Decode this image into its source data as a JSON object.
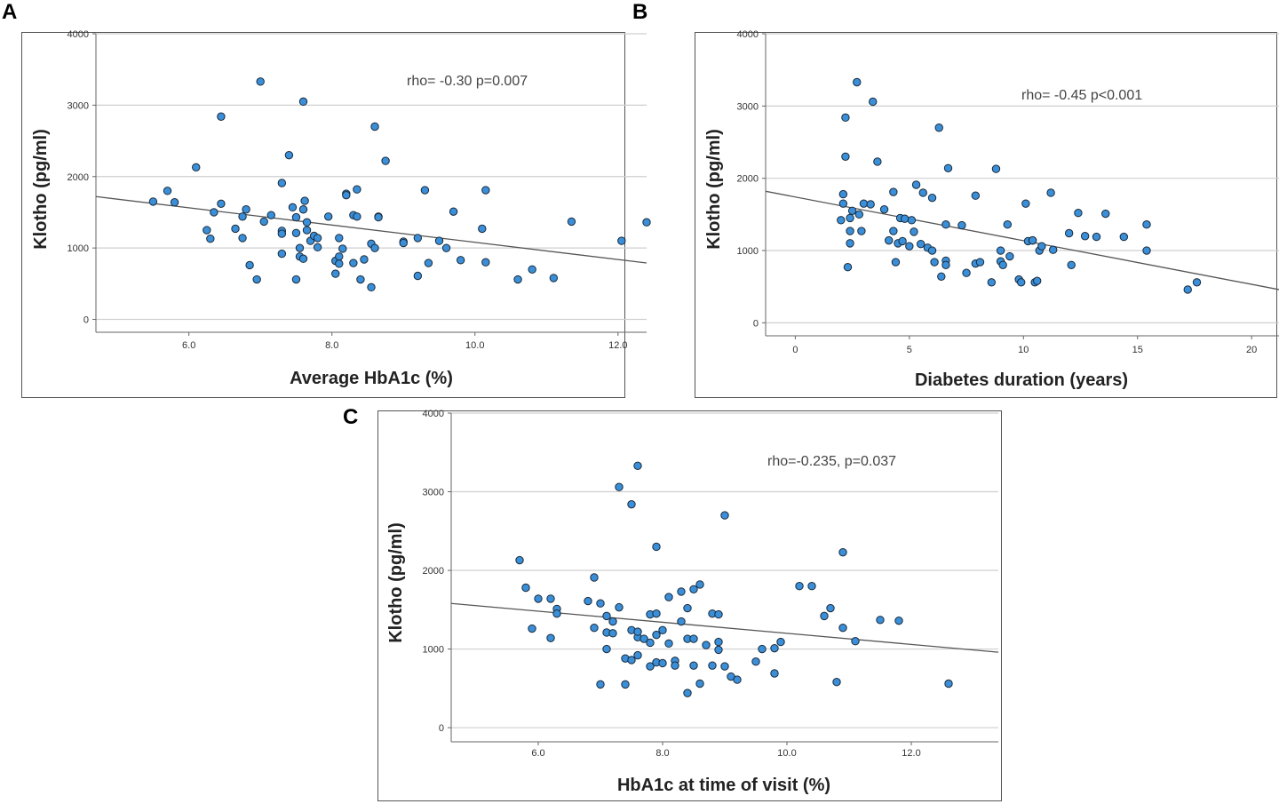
{
  "colors": {
    "point_fill": "#3a8fd8",
    "point_stroke": "#1a2a3a",
    "grid": "#cfcfcf",
    "fit_line": "#555555",
    "frame": "#555555"
  },
  "chart_data": [
    {
      "panel": "A",
      "type": "scatter",
      "xlabel": "Average HbA1c (%)",
      "ylabel": "Klotho (pg/ml)",
      "annotation": "rho= -0.30  p=0.007",
      "xlim": [
        4.7,
        12.4
      ],
      "ylim": [
        -180,
        4000
      ],
      "xticks": [
        6.0,
        8.0,
        10.0,
        12.0
      ],
      "xtick_labels": [
        "6.0",
        "8.0",
        "10.0",
        "12.0"
      ],
      "yticks": [
        0,
        1000,
        2000,
        3000,
        4000
      ],
      "ytick_labels": [
        "0",
        "1000",
        "2000",
        "3000",
        "4000"
      ],
      "fit_line": [
        [
          4.7,
          1720
        ],
        [
          12.4,
          790
        ]
      ],
      "points": [
        [
          5.5,
          1650
        ],
        [
          5.7,
          1800
        ],
        [
          5.8,
          1640
        ],
        [
          6.1,
          2130
        ],
        [
          6.25,
          1250
        ],
        [
          6.3,
          1130
        ],
        [
          6.35,
          1500
        ],
        [
          6.45,
          2840
        ],
        [
          6.45,
          1620
        ],
        [
          6.65,
          1270
        ],
        [
          6.75,
          1440
        ],
        [
          6.75,
          1140
        ],
        [
          6.8,
          1540
        ],
        [
          6.85,
          760
        ],
        [
          6.95,
          560
        ],
        [
          7.0,
          3330
        ],
        [
          7.05,
          1370
        ],
        [
          7.15,
          1460
        ],
        [
          7.3,
          1910
        ],
        [
          7.3,
          1240
        ],
        [
          7.3,
          1200
        ],
        [
          7.3,
          920
        ],
        [
          7.4,
          2300
        ],
        [
          7.45,
          1570
        ],
        [
          7.5,
          1430
        ],
        [
          7.5,
          1210
        ],
        [
          7.5,
          560
        ],
        [
          7.55,
          880
        ],
        [
          7.55,
          1000
        ],
        [
          7.6,
          3050
        ],
        [
          7.6,
          1540
        ],
        [
          7.6,
          850
        ],
        [
          7.62,
          1660
        ],
        [
          7.65,
          1360
        ],
        [
          7.65,
          1250
        ],
        [
          7.7,
          1100
        ],
        [
          7.75,
          1170
        ],
        [
          7.8,
          1140
        ],
        [
          7.8,
          1010
        ],
        [
          7.95,
          1440
        ],
        [
          8.05,
          640
        ],
        [
          8.05,
          820
        ],
        [
          8.1,
          880
        ],
        [
          8.1,
          780
        ],
        [
          8.1,
          1140
        ],
        [
          8.15,
          990
        ],
        [
          8.2,
          1760
        ],
        [
          8.2,
          1740
        ],
        [
          8.3,
          1460
        ],
        [
          8.3,
          790
        ],
        [
          8.35,
          1820
        ],
        [
          8.35,
          1440
        ],
        [
          8.4,
          560
        ],
        [
          8.45,
          840
        ],
        [
          8.55,
          450
        ],
        [
          8.55,
          1060
        ],
        [
          8.6,
          1000
        ],
        [
          8.6,
          2700
        ],
        [
          8.65,
          1440
        ],
        [
          8.65,
          1430
        ],
        [
          8.75,
          2220
        ],
        [
          9.0,
          1090
        ],
        [
          9.0,
          1070
        ],
        [
          9.2,
          610
        ],
        [
          9.2,
          1140
        ],
        [
          9.3,
          1810
        ],
        [
          9.35,
          790
        ],
        [
          9.5,
          1100
        ],
        [
          9.6,
          1000
        ],
        [
          9.7,
          1510
        ],
        [
          9.8,
          830
        ],
        [
          10.1,
          1270
        ],
        [
          10.15,
          1810
        ],
        [
          10.15,
          800
        ],
        [
          10.6,
          560
        ],
        [
          10.8,
          700
        ],
        [
          11.1,
          580
        ],
        [
          11.35,
          1370
        ],
        [
          12.05,
          1100
        ],
        [
          12.4,
          1360
        ]
      ]
    },
    {
      "panel": "B",
      "type": "scatter",
      "xlabel": "Diabetes duration (years)",
      "ylabel": "Klotho (pg/ml)",
      "annotation": "rho= -0.45  p<0.001",
      "xlim": [
        -1.3,
        21.2
      ],
      "ylim": [
        -180,
        4000
      ],
      "xticks": [
        0,
        5,
        10,
        15,
        20
      ],
      "xtick_labels": [
        "0",
        "5",
        "10",
        "15",
        "20"
      ],
      "yticks": [
        0,
        1000,
        2000,
        3000,
        4000
      ],
      "ytick_labels": [
        "0",
        "1000",
        "2000",
        "3000",
        "4000"
      ],
      "fit_line": [
        [
          -1.3,
          1820
        ],
        [
          21.2,
          460
        ]
      ],
      "points": [
        [
          2.0,
          1420
        ],
        [
          2.1,
          1650
        ],
        [
          2.1,
          1780
        ],
        [
          2.2,
          2300
        ],
        [
          2.2,
          2840
        ],
        [
          2.3,
          770
        ],
        [
          2.4,
          1450
        ],
        [
          2.4,
          1270
        ],
        [
          2.4,
          1100
        ],
        [
          2.5,
          1550
        ],
        [
          2.7,
          3330
        ],
        [
          2.8,
          1500
        ],
        [
          2.9,
          1270
        ],
        [
          3.0,
          1650
        ],
        [
          3.3,
          1640
        ],
        [
          3.4,
          3060
        ],
        [
          3.6,
          2230
        ],
        [
          3.9,
          1570
        ],
        [
          4.1,
          1140
        ],
        [
          4.3,
          1810
        ],
        [
          4.3,
          1270
        ],
        [
          4.4,
          840
        ],
        [
          4.5,
          1100
        ],
        [
          4.6,
          1450
        ],
        [
          4.7,
          1130
        ],
        [
          4.8,
          1440
        ],
        [
          5.0,
          1060
        ],
        [
          5.1,
          1420
        ],
        [
          5.2,
          1260
        ],
        [
          5.3,
          1910
        ],
        [
          5.5,
          1090
        ],
        [
          5.6,
          1800
        ],
        [
          5.8,
          1040
        ],
        [
          6.0,
          1000
        ],
        [
          6.0,
          1730
        ],
        [
          6.1,
          840
        ],
        [
          6.3,
          2700
        ],
        [
          6.4,
          640
        ],
        [
          6.6,
          1360
        ],
        [
          6.6,
          860
        ],
        [
          6.6,
          800
        ],
        [
          6.7,
          2140
        ],
        [
          7.3,
          1350
        ],
        [
          7.5,
          690
        ],
        [
          7.9,
          1760
        ],
        [
          7.9,
          820
        ],
        [
          8.1,
          840
        ],
        [
          8.6,
          560
        ],
        [
          8.8,
          2130
        ],
        [
          9.0,
          1000
        ],
        [
          9.0,
          850
        ],
        [
          9.1,
          800
        ],
        [
          9.3,
          1360
        ],
        [
          9.4,
          920
        ],
        [
          9.8,
          600
        ],
        [
          9.9,
          560
        ],
        [
          10.1,
          1650
        ],
        [
          10.2,
          1130
        ],
        [
          10.4,
          1140
        ],
        [
          10.4,
          1140
        ],
        [
          10.5,
          560
        ],
        [
          10.6,
          580
        ],
        [
          10.7,
          1000
        ],
        [
          10.8,
          1060
        ],
        [
          11.2,
          1800
        ],
        [
          11.3,
          1010
        ],
        [
          12.0,
          1240
        ],
        [
          12.1,
          800
        ],
        [
          12.4,
          1520
        ],
        [
          12.7,
          1200
        ],
        [
          13.2,
          1190
        ],
        [
          13.6,
          1510
        ],
        [
          14.4,
          1190
        ],
        [
          15.4,
          1360
        ],
        [
          15.4,
          1000
        ],
        [
          17.2,
          460
        ],
        [
          17.6,
          560
        ]
      ]
    },
    {
      "panel": "C",
      "type": "scatter",
      "xlabel": "HbA1c at time of visit (%)",
      "ylabel": "Klotho (pg/ml)",
      "annotation": "rho=-0.235, p=0.037",
      "xlim": [
        4.6,
        13.4
      ],
      "ylim": [
        -180,
        4000
      ],
      "xticks": [
        6.0,
        8.0,
        10.0,
        12.0
      ],
      "xtick_labels": [
        "6.0",
        "8.0",
        "10.0",
        "12.0"
      ],
      "yticks": [
        0,
        1000,
        2000,
        3000,
        4000
      ],
      "ytick_labels": [
        "0",
        "1000",
        "2000",
        "3000",
        "4000"
      ],
      "fit_line": [
        [
          4.6,
          1580
        ],
        [
          13.4,
          960
        ]
      ],
      "points": [
        [
          5.7,
          2130
        ],
        [
          5.8,
          1780
        ],
        [
          5.9,
          1260
        ],
        [
          6.0,
          1640
        ],
        [
          6.2,
          1640
        ],
        [
          6.2,
          1140
        ],
        [
          6.3,
          1510
        ],
        [
          6.3,
          1450
        ],
        [
          6.8,
          1610
        ],
        [
          6.9,
          1910
        ],
        [
          6.9,
          1270
        ],
        [
          7.0,
          1580
        ],
        [
          7.0,
          550
        ],
        [
          7.1,
          1420
        ],
        [
          7.1,
          1000
        ],
        [
          7.1,
          1210
        ],
        [
          7.2,
          1350
        ],
        [
          7.2,
          1200
        ],
        [
          7.3,
          3060
        ],
        [
          7.3,
          1530
        ],
        [
          7.4,
          880
        ],
        [
          7.4,
          550
        ],
        [
          7.5,
          2840
        ],
        [
          7.5,
          1240
        ],
        [
          7.5,
          860
        ],
        [
          7.6,
          3330
        ],
        [
          7.6,
          1150
        ],
        [
          7.6,
          1220
        ],
        [
          7.6,
          920
        ],
        [
          7.7,
          1130
        ],
        [
          7.8,
          1440
        ],
        [
          7.8,
          1080
        ],
        [
          7.8,
          780
        ],
        [
          7.9,
          2300
        ],
        [
          7.9,
          1450
        ],
        [
          7.9,
          1180
        ],
        [
          7.9,
          830
        ],
        [
          8.0,
          1240
        ],
        [
          8.0,
          820
        ],
        [
          8.1,
          1660
        ],
        [
          8.1,
          1070
        ],
        [
          8.2,
          850
        ],
        [
          8.2,
          790
        ],
        [
          8.3,
          1730
        ],
        [
          8.3,
          1350
        ],
        [
          8.4,
          1520
        ],
        [
          8.4,
          1130
        ],
        [
          8.4,
          440
        ],
        [
          8.5,
          1760
        ],
        [
          8.5,
          1130
        ],
        [
          8.5,
          790
        ],
        [
          8.6,
          1820
        ],
        [
          8.6,
          560
        ],
        [
          8.7,
          1050
        ],
        [
          8.8,
          1450
        ],
        [
          8.8,
          790
        ],
        [
          8.9,
          1440
        ],
        [
          8.9,
          1090
        ],
        [
          8.9,
          990
        ],
        [
          9.0,
          2700
        ],
        [
          9.0,
          780
        ],
        [
          9.1,
          650
        ],
        [
          9.2,
          610
        ],
        [
          9.5,
          840
        ],
        [
          9.6,
          1000
        ],
        [
          9.8,
          1010
        ],
        [
          9.8,
          690
        ],
        [
          9.9,
          1090
        ],
        [
          10.2,
          1800
        ],
        [
          10.4,
          1800
        ],
        [
          10.6,
          1420
        ],
        [
          10.7,
          1520
        ],
        [
          10.8,
          580
        ],
        [
          10.9,
          2230
        ],
        [
          10.9,
          1270
        ],
        [
          11.1,
          1100
        ],
        [
          11.5,
          1370
        ],
        [
          11.8,
          1360
        ],
        [
          12.6,
          560
        ]
      ]
    }
  ]
}
